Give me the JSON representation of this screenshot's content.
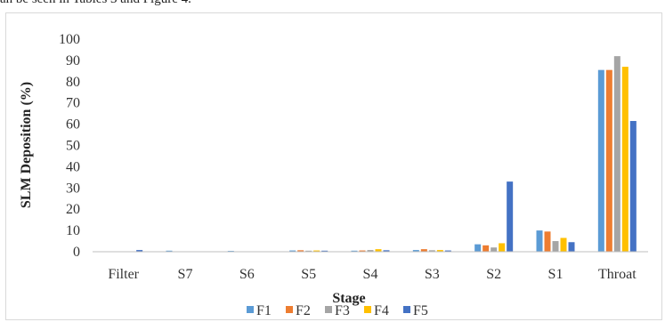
{
  "context_text": "an be seen in Tables 3 and Figure 4.",
  "chart_data": {
    "type": "bar",
    "title": "",
    "xlabel": "Stage",
    "ylabel": "SLM Deposition (%)",
    "ylim": [
      0,
      100
    ],
    "yticks": [
      0,
      10,
      20,
      30,
      40,
      50,
      60,
      70,
      80,
      90,
      100
    ],
    "grid": false,
    "legend_position": "bottom",
    "categories": [
      "Filter",
      "S7",
      "S6",
      "S5",
      "S4",
      "S3",
      "S2",
      "S1",
      "Throat"
    ],
    "series": [
      {
        "name": "F1",
        "color": "#5b9bd5",
        "values": [
          0,
          0.5,
          0.4,
          0.6,
          0.5,
          0.8,
          3.5,
          10,
          85.5
        ]
      },
      {
        "name": "F2",
        "color": "#ed7d31",
        "values": [
          0,
          0,
          0,
          0.7,
          0.6,
          1.2,
          3,
          9.5,
          85.5
        ]
      },
      {
        "name": "F3",
        "color": "#a5a5a5",
        "values": [
          0,
          0,
          0,
          0.5,
          0.8,
          0.7,
          2,
          5,
          92
        ]
      },
      {
        "name": "F4",
        "color": "#ffc000",
        "values": [
          0,
          0,
          0,
          0.6,
          1.2,
          0.8,
          4,
          6.5,
          87
        ]
      },
      {
        "name": "F5",
        "color": "#4472c4",
        "values": [
          0.8,
          0,
          0,
          0.5,
          0.7,
          0.6,
          33,
          4.5,
          61.5
        ]
      }
    ]
  }
}
